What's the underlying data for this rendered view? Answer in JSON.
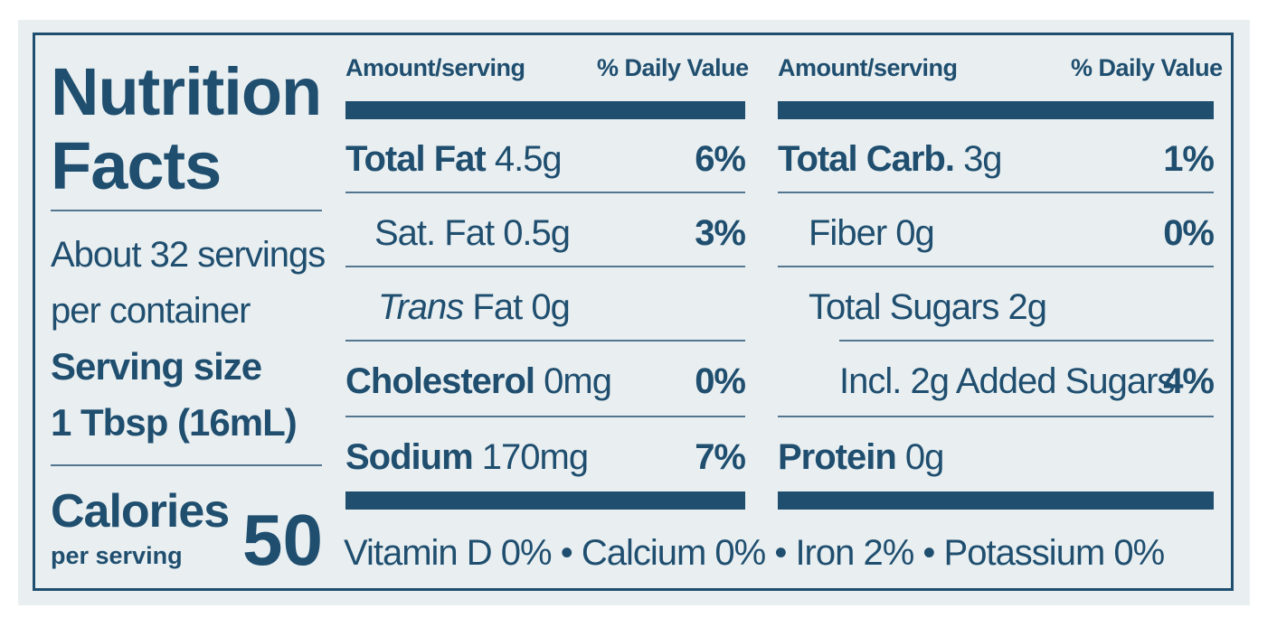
{
  "title": {
    "line1": "Nutrition",
    "line2": "Facts"
  },
  "servings": {
    "line1": "About 32 servings",
    "line2": "per container"
  },
  "serving_size": {
    "label": "Serving size",
    "value": "1 Tbsp (16mL)"
  },
  "calories": {
    "label": "Calories",
    "sub": "per serving",
    "value": "50"
  },
  "headers": {
    "amount": "Amount/serving",
    "dv": "% Daily Value"
  },
  "left_rows": [
    {
      "name": "Total Fat",
      "amount": "4.5g",
      "dv": "6%"
    },
    {
      "name": "Sat. Fat",
      "amount": "0.5g",
      "dv": "3%"
    },
    {
      "name_italic": "Trans",
      "name": "Fat",
      "amount": "0g",
      "dv": ""
    },
    {
      "name": "Cholesterol",
      "amount": "0mg",
      "dv": "0%"
    },
    {
      "name": "Sodium",
      "amount": "170mg",
      "dv": "7%"
    }
  ],
  "right_rows": [
    {
      "name": "Total Carb.",
      "amount": "3g",
      "dv": "1%"
    },
    {
      "name": "Fiber",
      "amount": "0g",
      "dv": "0%"
    },
    {
      "name": "Total Sugars",
      "amount": "2g",
      "dv": ""
    },
    {
      "name": "Incl. 2g Added Sugars",
      "amount": "",
      "dv": "4%"
    },
    {
      "name": "Protein",
      "amount": "0g",
      "dv": ""
    }
  ],
  "vitamins": "Vitamin D 0% • Calcium 0% • Iron 2% • Potassium 0%"
}
